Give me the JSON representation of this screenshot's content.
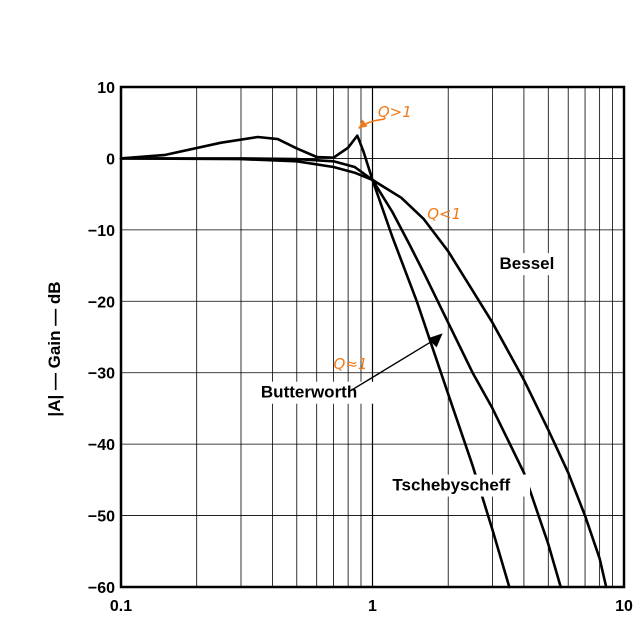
{
  "chart_data": {
    "type": "line",
    "title": "",
    "xlabel": "",
    "ylabel": "|A| — Gain — dB",
    "xscale": "log",
    "xlim": [
      0.1,
      10
    ],
    "ylim": [
      -60,
      10
    ],
    "grid": true,
    "x_tick_labels": [
      "0.1",
      "1",
      "10"
    ],
    "y_ticks": [
      10,
      0,
      -10,
      -20,
      -30,
      -40,
      -50,
      -60
    ],
    "y_tick_labels": [
      "10",
      "0",
      "−10",
      "−20",
      "−30",
      "−40",
      "−50",
      "−60"
    ],
    "series": [
      {
        "name": "Bessel",
        "x": [
          0.1,
          0.3,
          0.5,
          0.7,
          0.85,
          1.0,
          1.3,
          1.6,
          2.0,
          2.5,
          3.0,
          4.0,
          5.0,
          6.0,
          7.0,
          8.0,
          8.5
        ],
        "y": [
          0,
          -0.1,
          -0.4,
          -1.2,
          -2.0,
          -3.0,
          -5.5,
          -8.5,
          -13,
          -18.5,
          -23,
          -31,
          -38,
          -44,
          -50,
          -56,
          -60
        ]
      },
      {
        "name": "Butterworth",
        "x": [
          0.1,
          0.3,
          0.5,
          0.7,
          0.85,
          1.0,
          1.2,
          1.4,
          1.6,
          2.0,
          2.5,
          3.0,
          4.0,
          5.0,
          5.6
        ],
        "y": [
          0,
          0,
          -0.1,
          -0.4,
          -1.2,
          -3.0,
          -7.5,
          -12,
          -16,
          -23,
          -30,
          -35,
          -44,
          -54,
          -60
        ]
      },
      {
        "name": "Tschebyscheff",
        "x": [
          0.1,
          0.15,
          0.25,
          0.35,
          0.42,
          0.5,
          0.6,
          0.7,
          0.8,
          0.87,
          0.92,
          1.0,
          1.2,
          1.5,
          2.0,
          2.5,
          3.0,
          3.5
        ],
        "y": [
          0,
          0.5,
          2.2,
          3.0,
          2.7,
          1.4,
          0.2,
          0.1,
          1.5,
          3.2,
          1.0,
          -3.0,
          -11,
          -20,
          -33,
          -43,
          -52,
          -60
        ]
      }
    ],
    "annotations": [
      {
        "text": "Bessel",
        "x": 3.2,
        "y": -15.5
      },
      {
        "text": "Butterworth",
        "x": 0.36,
        "y": -33.5
      },
      {
        "text": "Tschebyscheff",
        "x": 1.2,
        "y": -46.5
      },
      {
        "text": "Q>1",
        "x": 1.05,
        "y": 5.8,
        "color": "#f07a1a"
      },
      {
        "text": "Q<1",
        "x": 1.65,
        "y": -8.5,
        "color": "#f07a1a"
      },
      {
        "text": "Q≈1",
        "x": 0.7,
        "y": -29.5,
        "color": "#f07a1a"
      }
    ],
    "line_color": "#000000",
    "note_color": "#f07a1a"
  }
}
